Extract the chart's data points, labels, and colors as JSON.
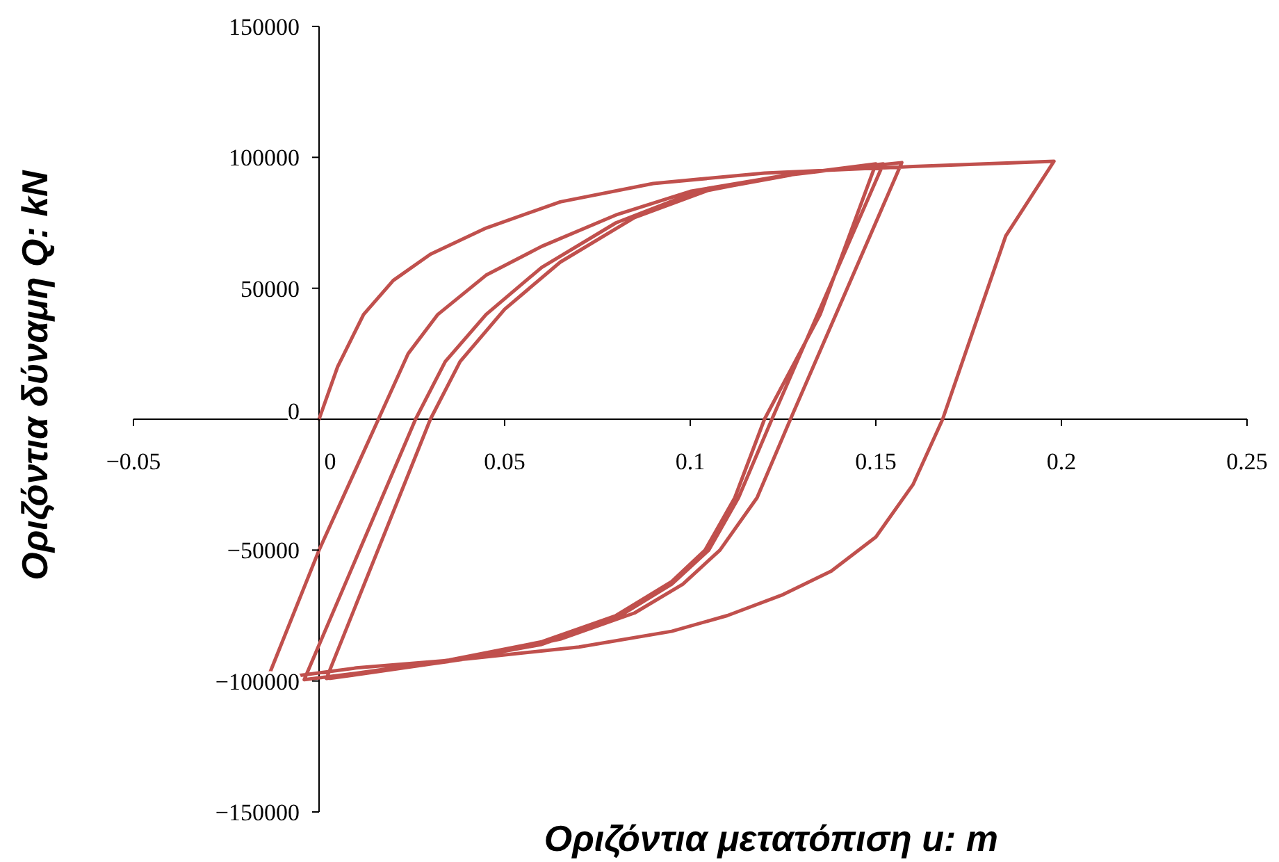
{
  "chart_data": {
    "type": "line",
    "xlabel": "Οριζόντια μετατόπιση u: m",
    "ylabel": "Οριζόντια δύναμη Q: kN",
    "xlim": [
      -0.05,
      0.25
    ],
    "ylim": [
      -150000,
      150000
    ],
    "xticks": [
      {
        "value": -0.05,
        "label": "−0.05"
      },
      0,
      0.05,
      0.1,
      0.15,
      0.2,
      0.25
    ],
    "yticks": [
      {
        "value": -150000,
        "label": "−150000"
      },
      {
        "value": -100000,
        "label": "−100000"
      },
      {
        "value": -50000,
        "label": "−50000"
      },
      0,
      50000,
      100000,
      150000
    ],
    "grid": false,
    "marker": "none",
    "line_style": "solid",
    "series": [
      {
        "color": "#c0504d",
        "x": [
          0,
          0.005,
          0.012,
          0.02,
          0.03,
          0.045,
          0.065,
          0.09,
          0.12,
          0.16,
          0.198,
          0.185,
          0.168,
          0.16,
          0.15,
          0.138,
          0.125,
          0.11,
          0.095,
          0.07,
          0.04,
          0.01,
          -0.014,
          0,
          0.016,
          0.024,
          0.032,
          0.045,
          0.06,
          0.08,
          0.1,
          0.125,
          0.15,
          0.135,
          0.12,
          0.112,
          0.104,
          0.095,
          0.08,
          0.06,
          0.035,
          0.01,
          -0.004,
          0.026,
          0.034,
          0.045,
          0.06,
          0.08,
          0.1,
          0.125,
          0.152,
          0.122,
          0.113,
          0.105,
          0.095,
          0.08,
          0.06,
          0.035,
          0.002,
          0.03,
          0.038,
          0.05,
          0.065,
          0.085,
          0.105,
          0.13,
          0.157,
          0.127,
          0.118,
          0.108,
          0.098,
          0.085,
          0.065,
          0.04,
          0.003
        ],
        "values": [
          0,
          20000,
          40000,
          53000,
          63000,
          73000,
          83000,
          90000,
          94000,
          96500,
          98500,
          70000,
          0,
          -25000,
          -45000,
          -58000,
          -67000,
          -75000,
          -81000,
          -87000,
          -91500,
          -95000,
          -99500,
          -50000,
          0,
          25000,
          40000,
          55000,
          66000,
          78000,
          87000,
          93000,
          97500,
          40000,
          0,
          -30000,
          -50000,
          -62000,
          -75000,
          -85000,
          -92000,
          -97000,
          -99500,
          0,
          22000,
          40000,
          58000,
          75000,
          86000,
          93000,
          97500,
          0,
          -30000,
          -50000,
          -63000,
          -76000,
          -86000,
          -92500,
          -99000,
          0,
          22000,
          42000,
          60000,
          77000,
          87500,
          94000,
          98000,
          0,
          -30000,
          -50000,
          -63000,
          -74000,
          -84000,
          -91500,
          -99000
        ]
      }
    ]
  }
}
